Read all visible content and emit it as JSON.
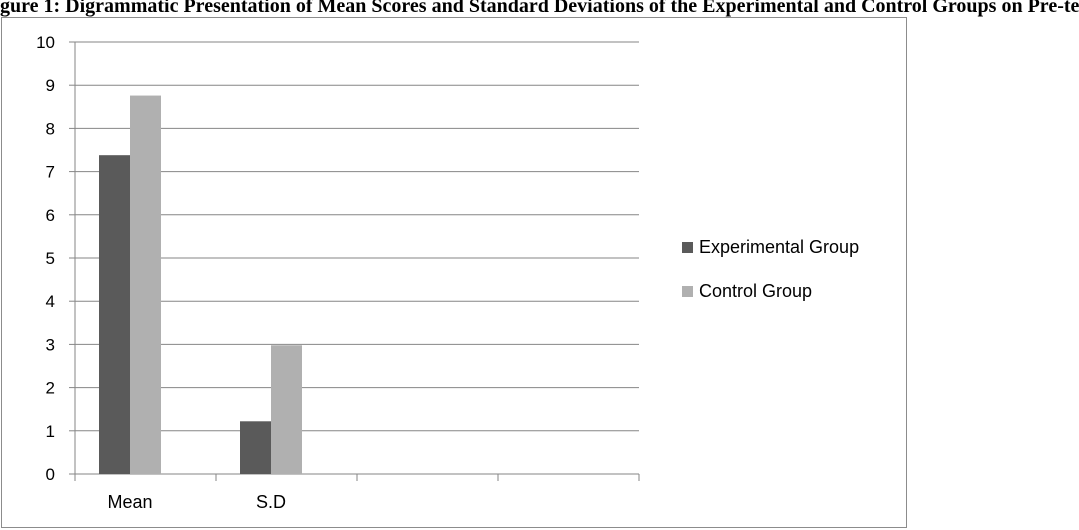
{
  "figure_title": "gure 1: Digrammatic Presentation of Mean Scores and Standard Deviations of the Experimental and Control Groups on Pre-te",
  "colors": {
    "experimental": "#5a5a5a",
    "control": "#b0b0b0",
    "gridline": "#868686",
    "axis": "#868686"
  },
  "chart_data": {
    "type": "bar",
    "title": "",
    "xlabel": "",
    "ylabel": "",
    "categories": [
      "Mean",
      "S.D",
      "",
      ""
    ],
    "series": [
      {
        "name": "Experimental Group",
        "values": [
          7.38,
          1.22,
          null,
          null
        ]
      },
      {
        "name": "Control Group",
        "values": [
          8.76,
          2.98,
          null,
          null
        ]
      }
    ],
    "ylim": [
      0,
      10
    ],
    "yticks": [
      "0",
      "1",
      "2",
      "3",
      "4",
      "5",
      "6",
      "7",
      "8",
      "9",
      "10"
    ],
    "grid": true,
    "legend_position": "right"
  }
}
